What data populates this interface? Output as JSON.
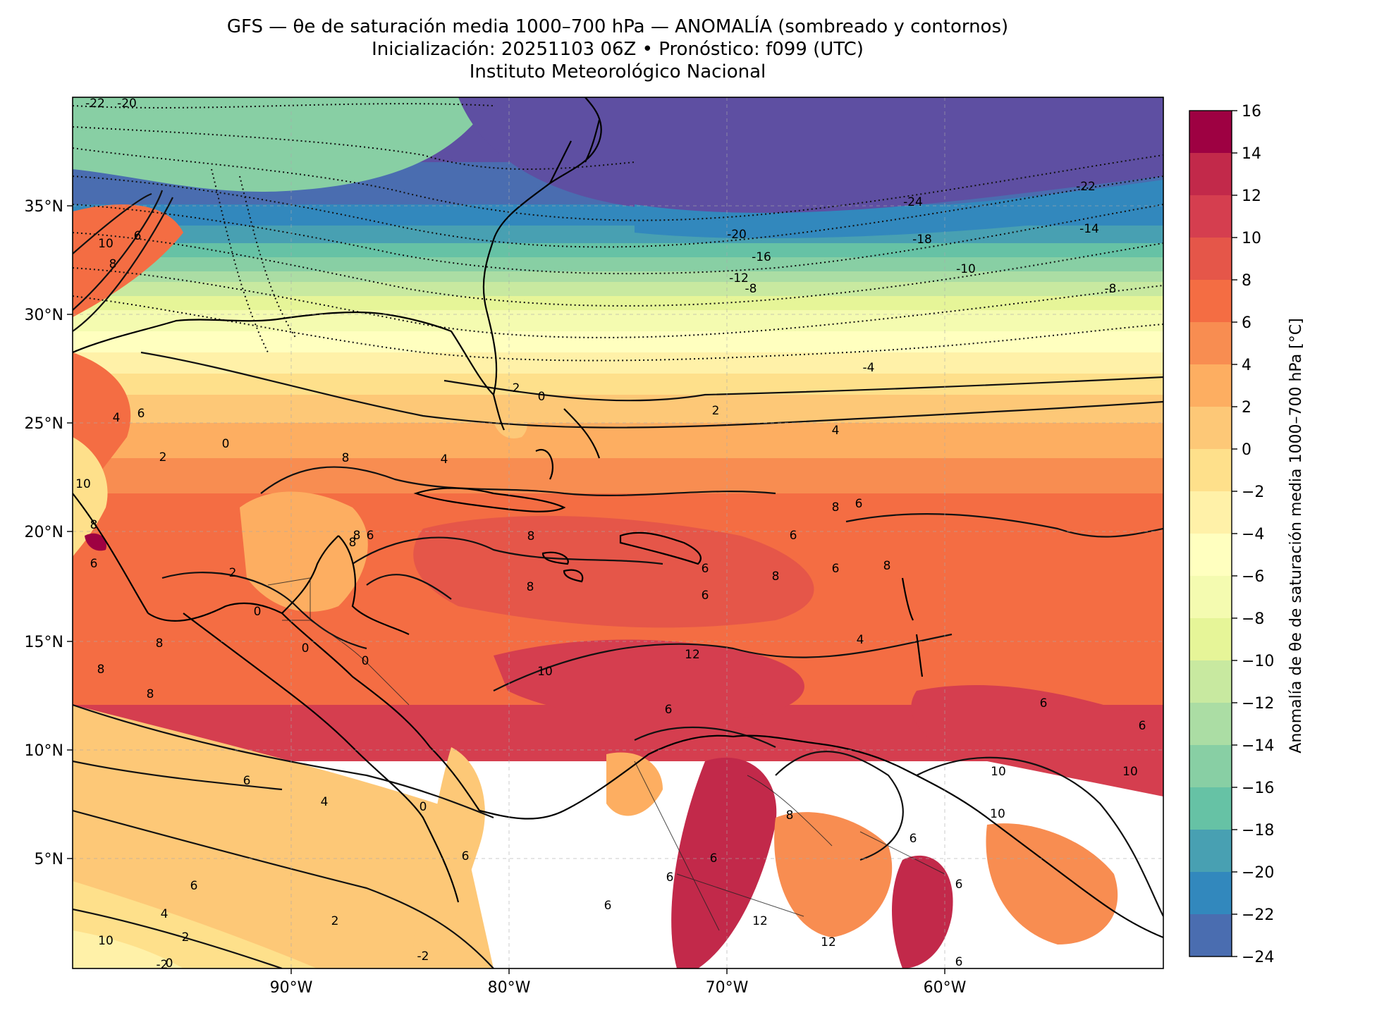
{
  "title": {
    "line1": "GFS — θe de saturación media 1000–700 hPa — ANOMALÍA (sombreado y contornos)",
    "line2": "Inicialización: 20251103 06Z   •   Pronóstico: f099 (UTC)",
    "line3": "Instituto Meteorológico Nacional"
  },
  "axes": {
    "lon_ticks": [
      "90°W",
      "80°W",
      "70°W",
      "60°W"
    ],
    "lat_ticks": [
      "35°N",
      "30°N",
      "25°N",
      "20°N",
      "15°N",
      "10°N",
      "5°N"
    ]
  },
  "colorbar": {
    "label": "Anomalía de θe de saturación media 1000–700 hPa [°C]",
    "ticks": [
      "16",
      "14",
      "12",
      "10",
      "8",
      "6",
      "4",
      "2",
      "0",
      "−2",
      "−4",
      "−6",
      "−8",
      "−10",
      "−12",
      "−14",
      "−16",
      "−18",
      "−20",
      "−22",
      "−24"
    ],
    "colors": [
      "#9e0142",
      "#c2294a",
      "#d53e4f",
      "#e55649",
      "#f46d43",
      "#f88d51",
      "#fdae61",
      "#fdc877",
      "#fee08b",
      "#fff1a8",
      "#ffffbf",
      "#f4fbb0",
      "#e6f598",
      "#c8e9a0",
      "#abdda4",
      "#88cfa4",
      "#66c2a5",
      "#48a0b2",
      "#3288bd",
      "#4a6db0",
      "#5e4fa2"
    ]
  },
  "contour_labels": [
    "-22",
    "-20",
    "-20",
    "-24",
    "-22",
    "-20",
    "-18",
    "-16",
    "-14",
    "-12",
    "-10",
    "-8",
    "-8",
    "-4",
    "2",
    "0",
    "2",
    "4",
    "10",
    "8",
    "6",
    "6",
    "4",
    "10",
    "8",
    "6",
    "0",
    "2",
    "4",
    "8",
    "6",
    "8",
    "8",
    "6",
    "8",
    "6",
    "8",
    "6",
    "8",
    "8",
    "6",
    "2",
    "0",
    "0",
    "0",
    "8",
    "8",
    "8",
    "8",
    "10",
    "12",
    "6",
    "6",
    "6",
    "4",
    "6",
    "10",
    "6",
    "8",
    "4",
    "6",
    "6",
    "10",
    "10",
    "4",
    "2",
    "0",
    "2",
    "6",
    "6",
    "6",
    "6",
    "12",
    "12",
    "6",
    "6",
    "10",
    "-2",
    "-2",
    "0"
  ]
}
